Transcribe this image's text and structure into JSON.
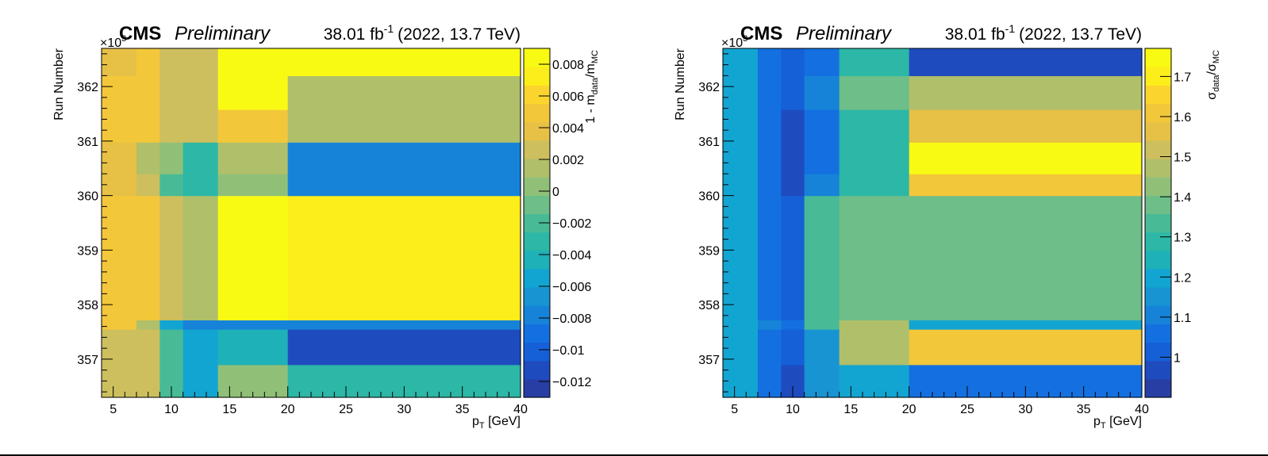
{
  "chart_data": [
    {
      "type": "heatmap",
      "experiment": "CMS",
      "tag": "Preliminary",
      "luminosity_base": "38.01 fb",
      "luminosity_exp": "-1",
      "energy_label": "(2022, 13.7 TeV)",
      "xlabel_main": "p",
      "xlabel_sub": "T",
      "xlabel_unit": " [GeV]",
      "ylabel": "Run Number",
      "y_multiplier_base": "×10",
      "y_multiplier_exp": "3",
      "zlabel_a": "1 - m",
      "zlabel_a_sub": "data",
      "zlabel_b": "/m",
      "zlabel_b_sub": "MC",
      "xlim": [
        4,
        40
      ],
      "ylim": [
        356.3,
        362.7
      ],
      "x_edges": [
        4,
        7,
        9,
        11,
        14,
        20,
        40
      ],
      "y_edges": [
        356.3,
        356.9,
        357.55,
        357.72,
        360.0,
        360.4,
        360.98,
        361.58,
        362.2,
        362.7
      ],
      "x_ticks": [
        5,
        10,
        15,
        20,
        25,
        30,
        35,
        40
      ],
      "x_tick_labels": [
        "5",
        "10",
        "15",
        "20",
        "25",
        "30",
        "35",
        "40"
      ],
      "y_ticks": [
        357,
        358,
        359,
        360,
        361,
        362
      ],
      "y_tick_labels": [
        "357",
        "358",
        "359",
        "360",
        "361",
        "362"
      ],
      "zlim": [
        -0.013,
        0.009
      ],
      "z_ticks": [
        -0.012,
        -0.01,
        -0.008,
        -0.006,
        -0.004,
        -0.002,
        0,
        0.002,
        0.004,
        0.006,
        0.008
      ],
      "z_tick_labels": [
        "−0.012",
        "−0.01",
        "−0.008",
        "−0.006",
        "−0.004",
        "−0.002",
        "0",
        "0.002",
        "0.004",
        "0.006",
        "0.008"
      ],
      "values": [
        [
          0.0025,
          0.0025,
          -0.0025,
          -0.005,
          0.0005,
          -0.003
        ],
        [
          0.0025,
          0.0025,
          -0.0025,
          -0.0055,
          -0.0045,
          -0.0115
        ],
        [
          0.005,
          0.0015,
          -0.005,
          -0.008,
          -0.008,
          -0.008
        ],
        [
          0.005,
          0.005,
          0.0025,
          0.0015,
          0.008,
          0.007
        ],
        [
          0.0035,
          0.0025,
          -0.0015,
          -0.0035,
          0.0005,
          -0.0075
        ],
        [
          0.0035,
          0.002,
          0.0005,
          -0.0035,
          0.002,
          -0.0075
        ],
        [
          0.005,
          0.005,
          0.0025,
          0.0025,
          0.0055,
          0.001
        ],
        [
          0.005,
          0.005,
          0.0025,
          0.0025,
          0.0085,
          0.002
        ],
        [
          0.004,
          0.005,
          0.0025,
          0.0025,
          0.0085,
          0.0085
        ]
      ]
    },
    {
      "type": "heatmap",
      "experiment": "CMS",
      "tag": "Preliminary",
      "luminosity_base": "38.01 fb",
      "luminosity_exp": "-1",
      "energy_label": "(2022, 13.7 TeV)",
      "xlabel_main": "p",
      "xlabel_sub": "T",
      "xlabel_unit": " [GeV]",
      "ylabel": "Run Number",
      "y_multiplier_base": "×10",
      "y_multiplier_exp": "3",
      "zlabel_a": "σ",
      "zlabel_a_sub": "data",
      "zlabel_b": "/σ",
      "zlabel_b_sub": "MC",
      "xlim": [
        4,
        40
      ],
      "ylim": [
        356.3,
        362.7
      ],
      "x_edges": [
        4,
        7,
        9,
        11,
        14,
        20,
        40
      ],
      "y_edges": [
        356.3,
        356.9,
        357.55,
        357.72,
        360.0,
        360.4,
        360.98,
        361.58,
        362.2,
        362.7
      ],
      "x_ticks": [
        5,
        10,
        15,
        20,
        25,
        30,
        35,
        40
      ],
      "x_tick_labels": [
        "5",
        "10",
        "15",
        "20",
        "25",
        "30",
        "35",
        "40"
      ],
      "y_ticks": [
        357,
        358,
        359,
        360,
        361,
        362
      ],
      "y_tick_labels": [
        "357",
        "358",
        "359",
        "360",
        "361",
        "362"
      ],
      "zlim": [
        0.9,
        1.77
      ],
      "z_ticks": [
        1.0,
        1.1,
        1.2,
        1.3,
        1.4,
        1.5,
        1.6,
        1.7
      ],
      "z_tick_labels": [
        "1",
        "1.1",
        "1.2",
        "1.3",
        "1.4",
        "1.5",
        "1.6",
        "1.7"
      ],
      "values": [
        [
          1.2,
          1.04,
          0.95,
          1.14,
          1.2,
          1.04
        ],
        [
          1.2,
          1.06,
          1.03,
          1.14,
          1.45,
          1.62
        ],
        [
          1.2,
          1.09,
          1.06,
          1.33,
          1.45,
          1.22
        ],
        [
          1.2,
          1.04,
          1.03,
          1.32,
          1.36,
          1.36
        ],
        [
          1.2,
          1.04,
          0.95,
          1.1,
          1.28,
          1.62
        ],
        [
          1.2,
          1.04,
          0.95,
          1.04,
          1.28,
          1.75
        ],
        [
          1.2,
          1.04,
          0.97,
          1.08,
          1.28,
          1.55
        ],
        [
          1.2,
          1.04,
          1.02,
          1.12,
          1.36,
          1.45
        ],
        [
          1.2,
          1.04,
          1.02,
          1.05,
          1.28,
          0.95
        ]
      ]
    }
  ]
}
